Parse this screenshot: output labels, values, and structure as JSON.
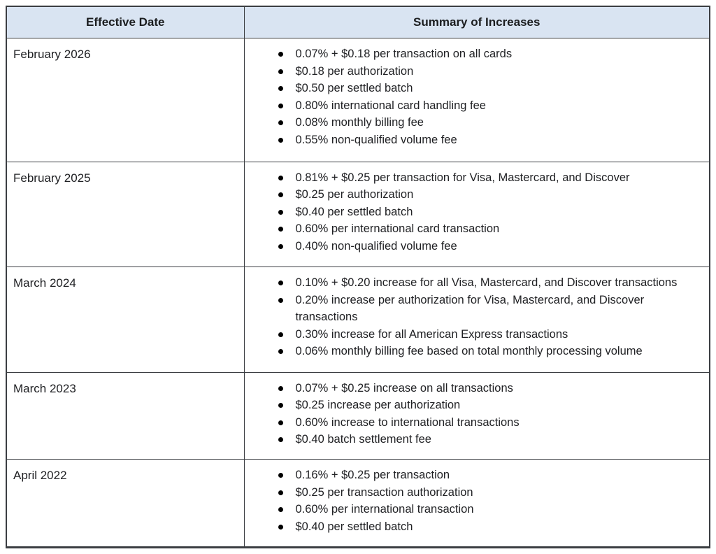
{
  "colors": {
    "header_bg": "#d9e4f2",
    "border": "#3b3e42",
    "text": "#202124"
  },
  "table": {
    "columns": [
      {
        "label": "Effective Date"
      },
      {
        "label": "Summary of Increases"
      }
    ],
    "rows": [
      {
        "date": "February 2026",
        "items": [
          "0.07% + $0.18 per transaction on all cards",
          "$0.18 per authorization",
          "$0.50 per settled batch",
          "0.80% international card handling fee",
          "0.08% monthly billing fee",
          "0.55% non-qualified volume fee"
        ]
      },
      {
        "date": "February 2025",
        "items": [
          "0.81% + $0.25 per transaction for Visa, Mastercard, and Discover",
          "$0.25 per authorization",
          "$0.40 per settled batch",
          "0.60% per international card transaction",
          "0.40% non-qualified volume fee"
        ]
      },
      {
        "date": "March 2024",
        "items": [
          "0.10% + $0.20 increase for all Visa, Mastercard, and Discover transactions",
          "0.20% increase per authorization for Visa, Mastercard, and Discover transactions",
          "0.30% increase for all American Express transactions",
          "0.06% monthly billing fee based on total monthly processing volume"
        ]
      },
      {
        "date": "March 2023",
        "items": [
          "0.07% + $0.25 increase on all transactions",
          "$0.25 increase per authorization",
          "0.60% increase to international transactions",
          "$0.40 batch settlement fee"
        ]
      },
      {
        "date": "April 2022",
        "items": [
          "0.16% + $0.25 per transaction",
          "$0.25 per transaction authorization",
          "0.60% per international transaction",
          "$0.40 per settled batch"
        ]
      }
    ]
  }
}
